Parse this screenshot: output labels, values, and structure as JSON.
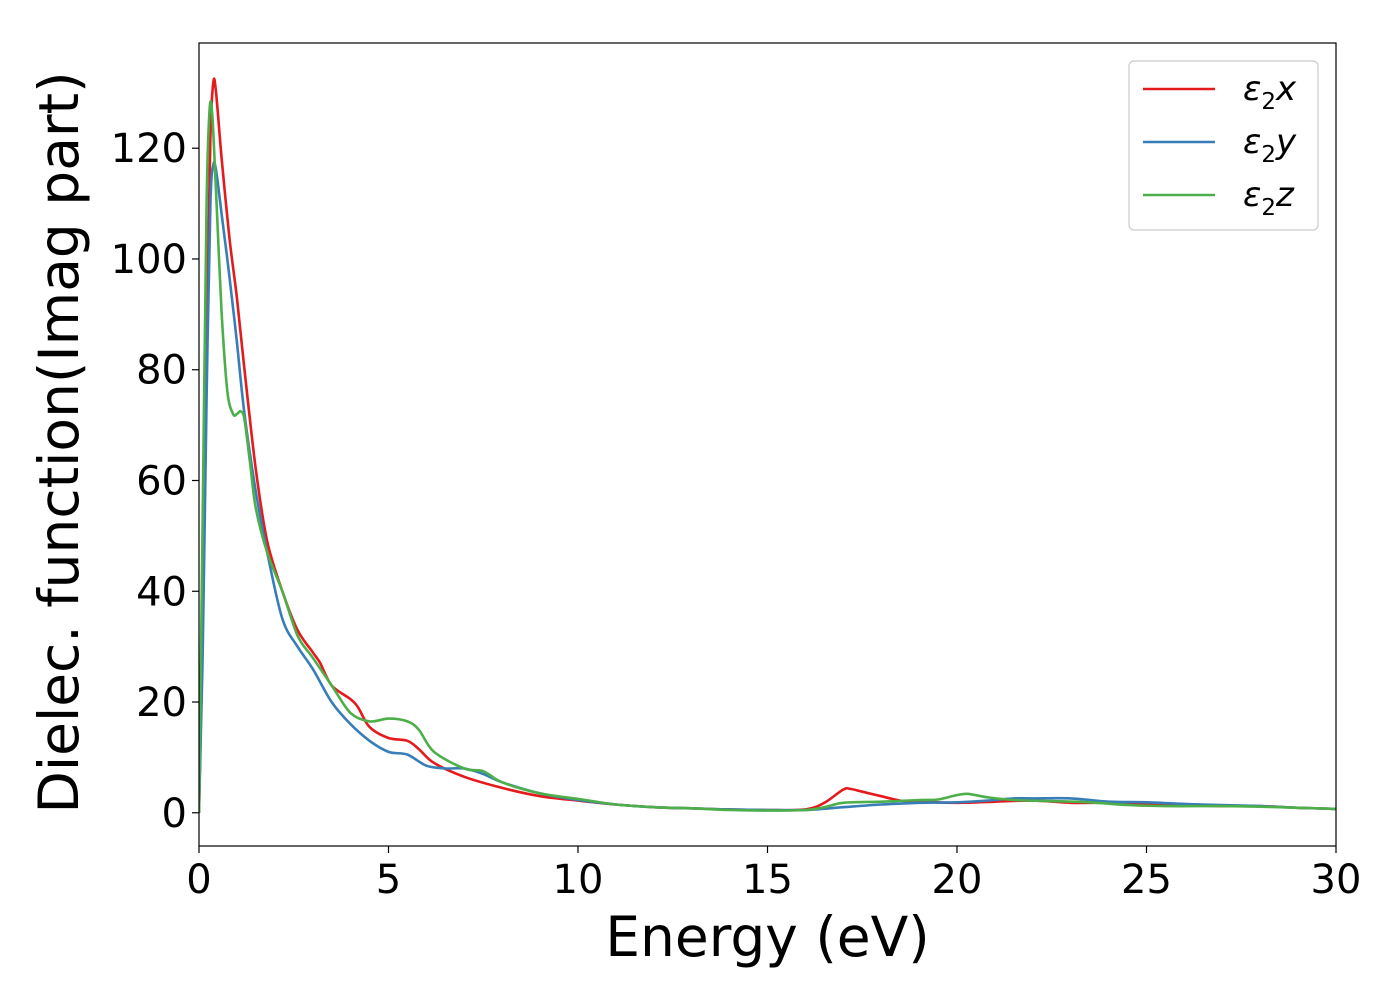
{
  "chart_data": {
    "type": "line",
    "title": "",
    "xlabel": "Energy (eV)",
    "ylabel": "Dielec. function(Imag part)",
    "xlim": [
      0,
      30
    ],
    "ylim": [
      -6,
      139
    ],
    "xticks": [
      0,
      5,
      10,
      15,
      20,
      25,
      30
    ],
    "yticks": [
      0,
      20,
      40,
      60,
      80,
      100,
      120
    ],
    "grid": false,
    "legend_position": "top-right",
    "series": [
      {
        "name": "ε2x",
        "legend_base": "ε",
        "legend_sub": "2",
        "legend_var": "x",
        "color": "#e41a1c",
        "x": [
          0,
          0.1,
          0.2,
          0.3,
          0.38,
          0.45,
          0.6,
          0.8,
          1.0,
          1.2,
          1.5,
          1.8,
          2.2,
          2.6,
          3.0,
          3.2,
          3.5,
          4.0,
          4.2,
          4.5,
          5.0,
          5.5,
          5.8,
          6.2,
          7.0,
          8.0,
          9.0,
          10.0,
          11.0,
          12.0,
          13.0,
          14.0,
          15.0,
          16.0,
          16.5,
          17.0,
          17.2,
          17.5,
          18.0,
          18.5,
          19.0,
          20.0,
          21.0,
          22.0,
          23.0,
          24.0,
          25.0,
          26.0,
          27.0,
          28.0,
          29.0,
          30.0
        ],
        "values": [
          0,
          35,
          85,
          122,
          132,
          130,
          118,
          104,
          93,
          80,
          62,
          49,
          40,
          33,
          29,
          27,
          23,
          20.5,
          19,
          15.5,
          13.5,
          13,
          11.5,
          9,
          6.5,
          4.5,
          3,
          2.2,
          1.5,
          1,
          0.8,
          0.6,
          0.5,
          0.6,
          1.8,
          4.2,
          4.3,
          3.8,
          3,
          2.2,
          2,
          1.8,
          2,
          2.2,
          1.8,
          1.8,
          1.6,
          1.4,
          1.2,
          1.2,
          0.9,
          0.7
        ]
      },
      {
        "name": "ε2y",
        "legend_base": "ε",
        "legend_sub": "2",
        "legend_var": "y",
        "color": "#377eb8",
        "x": [
          0,
          0.1,
          0.2,
          0.3,
          0.38,
          0.45,
          0.6,
          0.8,
          1.0,
          1.2,
          1.5,
          1.8,
          2.2,
          2.6,
          3.0,
          3.5,
          4.0,
          4.5,
          5.0,
          5.5,
          6.0,
          6.5,
          7.0,
          7.5,
          8.0,
          9.0,
          10.0,
          11.0,
          12.0,
          13.0,
          14.0,
          15.0,
          16.0,
          17.0,
          18.0,
          19.0,
          20.0,
          21.0,
          21.5,
          22.0,
          23.0,
          24.0,
          25.0,
          26.0,
          27.0,
          28.0,
          29.0,
          30.0
        ],
        "values": [
          0,
          30,
          75,
          110,
          117,
          116,
          108,
          97,
          85,
          72,
          58,
          47,
          35,
          30,
          26,
          20,
          16,
          13,
          11,
          10.5,
          8.5,
          8,
          8,
          7,
          5.5,
          3.5,
          2.3,
          1.5,
          1,
          0.8,
          0.6,
          0.5,
          0.5,
          1,
          1.5,
          1.8,
          1.9,
          2.3,
          2.6,
          2.6,
          2.6,
          2,
          1.9,
          1.6,
          1.4,
          1.2,
          0.9,
          0.7
        ]
      },
      {
        "name": "ε2z",
        "legend_base": "ε",
        "legend_sub": "2",
        "legend_var": "z",
        "color": "#4daf4a",
        "x": [
          0,
          0.1,
          0.2,
          0.28,
          0.35,
          0.45,
          0.6,
          0.75,
          0.9,
          1.0,
          1.1,
          1.2,
          1.35,
          1.5,
          1.8,
          2.2,
          2.6,
          3.0,
          3.5,
          4.0,
          4.5,
          5.0,
          5.5,
          5.8,
          6.2,
          7.0,
          7.5,
          8.0,
          9.0,
          10.0,
          11.0,
          12.0,
          13.0,
          14.0,
          15.0,
          16.0,
          16.5,
          17.0,
          18.0,
          19.0,
          19.5,
          20.0,
          20.3,
          20.8,
          21.5,
          22.5,
          23.5,
          24.5,
          25.5,
          27.0,
          28.0,
          29.0,
          30.0
        ],
        "values": [
          0,
          55,
          110,
          127,
          126,
          112,
          90,
          76,
          72,
          72,
          72.5,
          71,
          63,
          55,
          47,
          40,
          32,
          28,
          23,
          18,
          16.5,
          17,
          16.5,
          15,
          11,
          8,
          7.5,
          5.5,
          3.5,
          2.5,
          1.5,
          1,
          0.8,
          0.5,
          0.4,
          0.5,
          1,
          1.8,
          2,
          2.3,
          2.4,
          3.2,
          3.4,
          2.8,
          2.3,
          2.1,
          1.9,
          1.4,
          1.2,
          1.2,
          1.1,
          0.9,
          0.7
        ]
      }
    ]
  }
}
